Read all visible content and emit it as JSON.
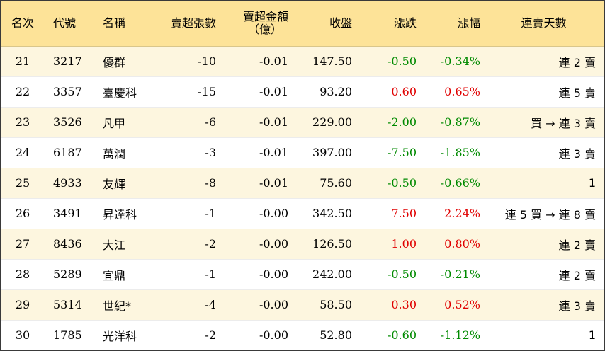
{
  "header": {
    "rank": "名次",
    "code": "代號",
    "name": "名稱",
    "net_lots": "賣超張數",
    "net_amount_line1": "賣超金額",
    "net_amount_line2": "（億）",
    "close": "收盤",
    "change": "漲跌",
    "change_pct": "漲幅",
    "streak": "連賣天數"
  },
  "colors": {
    "header_bg": "#fde398",
    "alt_row_bg": "#fdf6df",
    "up": "#e00000",
    "down": "#008a00"
  },
  "rows": [
    {
      "rank": "21",
      "code": "3217",
      "name": "優群",
      "net_lots": "-10",
      "net_amount": "-0.01",
      "close": "147.50",
      "change": "-0.50",
      "change_pct": "-0.34%",
      "streak": "連 2 賣",
      "direction": "down"
    },
    {
      "rank": "22",
      "code": "3357",
      "name": "臺慶科",
      "net_lots": "-15",
      "net_amount": "-0.01",
      "close": "93.20",
      "change": "0.60",
      "change_pct": "0.65%",
      "streak": "連 5 賣",
      "direction": "up"
    },
    {
      "rank": "23",
      "code": "3526",
      "name": "凡甲",
      "net_lots": "-6",
      "net_amount": "-0.01",
      "close": "229.00",
      "change": "-2.00",
      "change_pct": "-0.87%",
      "streak": "買 → 連 3 賣",
      "direction": "down"
    },
    {
      "rank": "24",
      "code": "6187",
      "name": "萬潤",
      "net_lots": "-3",
      "net_amount": "-0.01",
      "close": "397.00",
      "change": "-7.50",
      "change_pct": "-1.85%",
      "streak": "連 3 賣",
      "direction": "down"
    },
    {
      "rank": "25",
      "code": "4933",
      "name": "友輝",
      "net_lots": "-8",
      "net_amount": "-0.01",
      "close": "75.60",
      "change": "-0.50",
      "change_pct": "-0.66%",
      "streak": "1",
      "direction": "down"
    },
    {
      "rank": "26",
      "code": "3491",
      "name": "昇達科",
      "net_lots": "-1",
      "net_amount": "-0.00",
      "close": "342.50",
      "change": "7.50",
      "change_pct": "2.24%",
      "streak": "連 5 買 → 連 8 賣",
      "direction": "up"
    },
    {
      "rank": "27",
      "code": "8436",
      "name": "大江",
      "net_lots": "-2",
      "net_amount": "-0.00",
      "close": "126.50",
      "change": "1.00",
      "change_pct": "0.80%",
      "streak": "連 2 賣",
      "direction": "up"
    },
    {
      "rank": "28",
      "code": "5289",
      "name": "宜鼎",
      "net_lots": "-1",
      "net_amount": "-0.00",
      "close": "242.00",
      "change": "-0.50",
      "change_pct": "-0.21%",
      "streak": "連 2 賣",
      "direction": "down"
    },
    {
      "rank": "29",
      "code": "5314",
      "name": "世紀*",
      "net_lots": "-4",
      "net_amount": "-0.00",
      "close": "58.50",
      "change": "0.30",
      "change_pct": "0.52%",
      "streak": "連 3 賣",
      "direction": "up"
    },
    {
      "rank": "30",
      "code": "1785",
      "name": "光洋科",
      "net_lots": "-2",
      "net_amount": "-0.00",
      "close": "52.80",
      "change": "-0.60",
      "change_pct": "-1.12%",
      "streak": "1",
      "direction": "down"
    }
  ]
}
